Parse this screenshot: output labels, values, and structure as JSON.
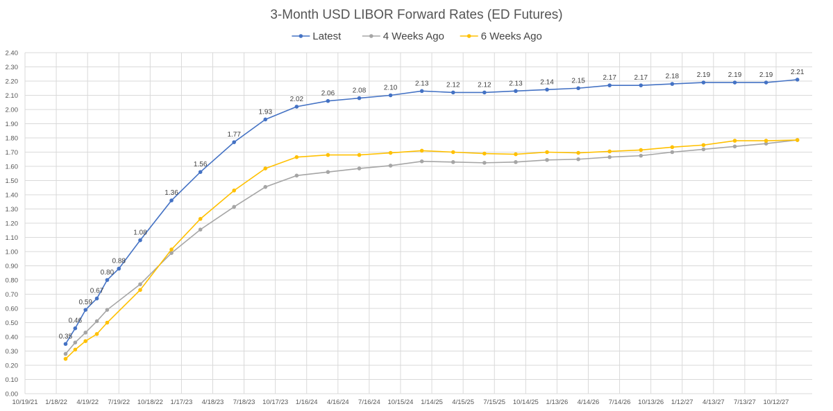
{
  "chart_data": {
    "type": "line",
    "title": "3-Month USD LIBOR Forward Rates (ED Futures)",
    "xlabel": "",
    "ylabel": "",
    "ylim": [
      0,
      2.4
    ],
    "ytick_step": 0.1,
    "xlim": [
      "2021-10-19",
      "2028-01-25"
    ],
    "x_tick_labels": [
      "10/19/21",
      "1/18/22",
      "4/19/22",
      "7/19/22",
      "10/18/22",
      "1/17/23",
      "4/18/23",
      "7/18/23",
      "10/17/23",
      "1/16/24",
      "4/16/24",
      "7/16/24",
      "10/15/24",
      "1/14/25",
      "4/15/25",
      "7/15/25",
      "10/14/25",
      "1/13/26",
      "4/14/26",
      "7/14/26",
      "10/13/26",
      "1/12/27",
      "4/13/27",
      "7/13/27",
      "10/12/27"
    ],
    "x_tick_dates": [
      "2021-10-19",
      "2022-01-18",
      "2022-04-19",
      "2022-07-19",
      "2022-10-18",
      "2023-01-17",
      "2023-04-18",
      "2023-07-18",
      "2023-10-17",
      "2024-01-16",
      "2024-04-16",
      "2024-07-16",
      "2024-10-15",
      "2025-01-14",
      "2025-04-15",
      "2025-07-15",
      "2025-10-14",
      "2026-01-13",
      "2026-04-14",
      "2026-07-14",
      "2026-10-13",
      "2027-01-12",
      "2027-04-13",
      "2027-07-13",
      "2027-10-12"
    ],
    "grid": true,
    "legend_position": "top-center",
    "x": [
      "2022-03-14",
      "2022-04-13",
      "2022-05-16",
      "2022-06-15",
      "2022-07-19",
      "2022-09-19",
      "2022-12-19",
      "2023-03-13",
      "2023-06-19",
      "2023-09-18",
      "2023-12-18",
      "2024-03-18",
      "2024-06-17",
      "2024-09-16",
      "2024-12-16",
      "2025-03-17",
      "2025-06-16",
      "2025-09-15",
      "2025-12-15",
      "2026-03-16",
      "2026-06-15",
      "2026-09-14",
      "2026-12-14",
      "2027-03-15",
      "2027-06-14",
      "2027-09-13",
      "2027-12-13"
    ],
    "series": [
      {
        "name": "Latest",
        "color": "#4472C4",
        "x": [
          "2022-02-14",
          "2022-03-14",
          "2022-04-13",
          "2022-05-16",
          "2022-06-15",
          "2022-07-19",
          "2022-09-19",
          "2022-12-19",
          "2023-03-13",
          "2023-06-19",
          "2023-09-18",
          "2023-12-18",
          "2024-03-18",
          "2024-06-17",
          "2024-09-16",
          "2024-12-16",
          "2025-03-17",
          "2025-06-16",
          "2025-09-15",
          "2025-12-15",
          "2026-03-16",
          "2026-06-15",
          "2026-09-14",
          "2026-12-14",
          "2027-03-15",
          "2027-06-14",
          "2027-09-13",
          "2027-12-13"
        ],
        "values": [
          0.35,
          0.46,
          0.59,
          0.67,
          0.8,
          0.88,
          1.08,
          1.36,
          1.56,
          1.77,
          1.93,
          2.02,
          2.06,
          2.08,
          2.1,
          2.13,
          2.12,
          2.12,
          2.13,
          2.14,
          2.15,
          2.17,
          2.17,
          2.18,
          2.19,
          2.19,
          2.19,
          2.21
        ],
        "labels": [
          "0.35",
          "0.46",
          "0.59",
          "0.67",
          "0.80",
          "0.88",
          "1.08",
          "1.36",
          "1.56",
          "1.77",
          "1.93",
          "2.02",
          "2.06",
          "2.08",
          "2.10",
          "2.13",
          "2.12",
          "2.12",
          "2.13",
          "2.14",
          "2.15",
          "2.17",
          "2.17",
          "2.18",
          "2.19",
          "2.19",
          "2.19",
          "2.21"
        ]
      },
      {
        "name": "4 Weeks Ago",
        "color": "#A5A5A5",
        "x": [
          "2022-02-14",
          "2022-03-14",
          "2022-04-13",
          "2022-05-16",
          "2022-06-15",
          "2022-09-19",
          "2022-12-19",
          "2023-03-13",
          "2023-06-19",
          "2023-09-18",
          "2023-12-18",
          "2024-03-18",
          "2024-06-17",
          "2024-09-16",
          "2024-12-16",
          "2025-03-17",
          "2025-06-16",
          "2025-09-15",
          "2025-12-15",
          "2026-03-16",
          "2026-06-15",
          "2026-09-14",
          "2026-12-14",
          "2027-03-15",
          "2027-06-14",
          "2027-09-13",
          "2027-12-13"
        ],
        "values": [
          0.28,
          0.36,
          0.43,
          0.51,
          0.59,
          0.77,
          0.99,
          1.155,
          1.315,
          1.455,
          1.535,
          1.56,
          1.585,
          1.605,
          1.635,
          1.63,
          1.625,
          1.63,
          1.645,
          1.65,
          1.665,
          1.675,
          1.7,
          1.72,
          1.74,
          1.76,
          1.785
        ]
      },
      {
        "name": "6 Weeks Ago",
        "color": "#FFC000",
        "x": [
          "2022-02-14",
          "2022-03-14",
          "2022-04-13",
          "2022-05-16",
          "2022-06-15",
          "2022-09-19",
          "2022-12-19",
          "2023-03-13",
          "2023-06-19",
          "2023-09-18",
          "2023-12-18",
          "2024-03-18",
          "2024-06-17",
          "2024-09-16",
          "2024-12-16",
          "2025-03-17",
          "2025-06-16",
          "2025-09-15",
          "2025-12-15",
          "2026-03-16",
          "2026-06-15",
          "2026-09-14",
          "2026-12-14",
          "2027-03-15",
          "2027-06-14",
          "2027-09-13",
          "2027-12-13"
        ],
        "values": [
          0.245,
          0.31,
          0.37,
          0.42,
          0.5,
          0.73,
          1.015,
          1.23,
          1.43,
          1.585,
          1.665,
          1.68,
          1.68,
          1.695,
          1.71,
          1.7,
          1.69,
          1.685,
          1.7,
          1.695,
          1.705,
          1.715,
          1.735,
          1.75,
          1.78,
          1.78,
          1.785
        ]
      }
    ]
  }
}
